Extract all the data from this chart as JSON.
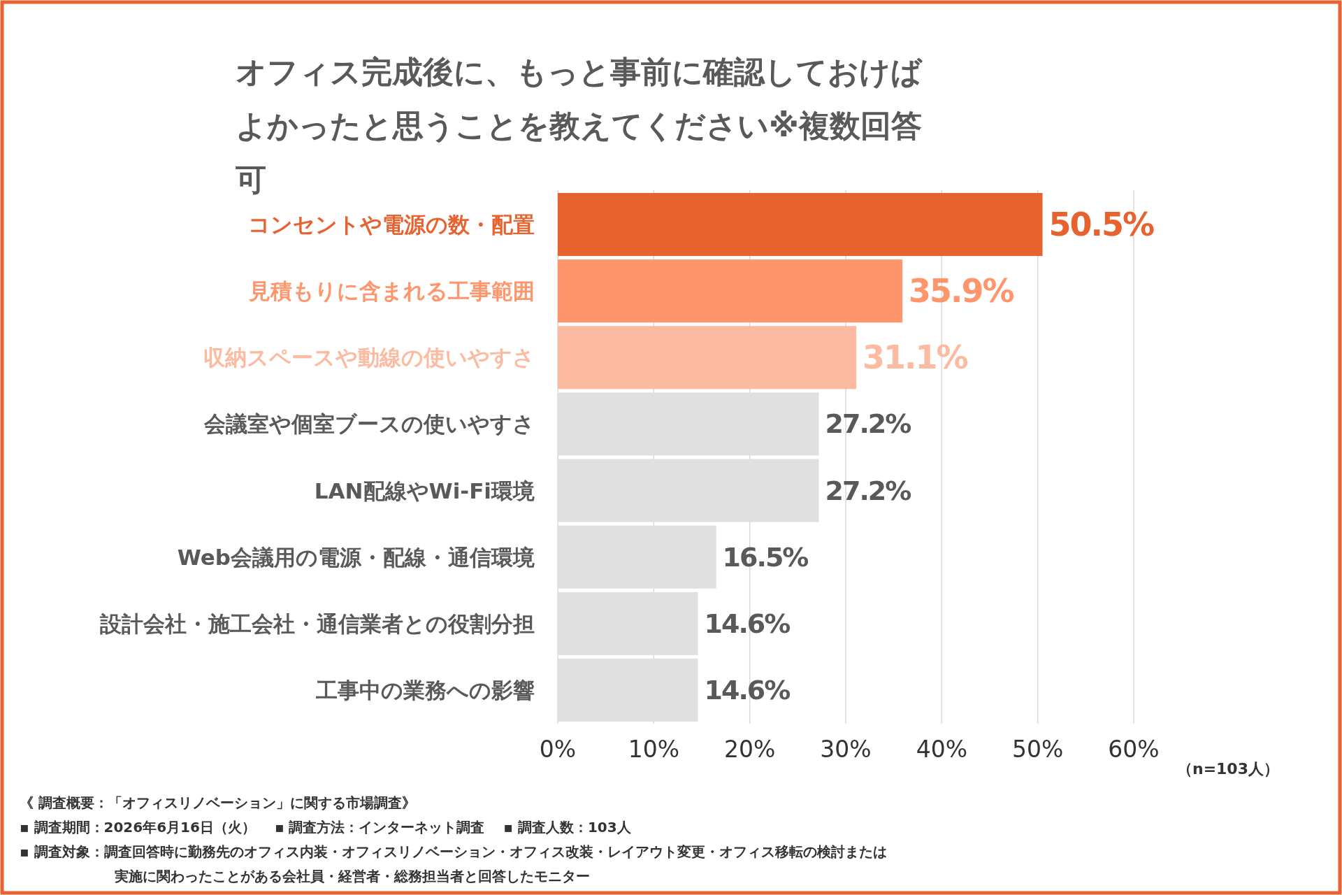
{
  "chart_data": {
    "type": "bar",
    "orientation": "horizontal",
    "title": "オフィス完成後に、もっと事前に確認しておけばよかったと思うことを教えてください※複数回答可",
    "categories": [
      "コンセントや電源の数・配置",
      "見積もりに含まれる工事範囲",
      "収納スペースや動線の使いやすさ",
      "会議室や個室ブースの使いやすさ",
      "LAN配線やWi-Fi環境",
      "Web会議用の電源・配線・通信環境",
      "設計会社・施工会社・通信業者との役割分担",
      "工事中の業務への影響"
    ],
    "values": [
      50.5,
      35.9,
      31.1,
      27.2,
      27.2,
      16.5,
      14.6,
      14.6
    ],
    "value_labels": [
      "50.5%",
      "35.9%",
      "31.1%",
      "27.2%",
      "27.2%",
      "16.5%",
      "14.6%",
      "14.6%"
    ],
    "colors": [
      "#e8622f",
      "#ff956b",
      "#fcbba0",
      "#e0e0e0",
      "#e0e0e0",
      "#e0e0e0",
      "#e0e0e0",
      "#e0e0e0"
    ],
    "xlim": [
      0,
      60
    ],
    "xticks": [
      {
        "value": 0,
        "label": "0%"
      },
      {
        "value": 10,
        "label": "10%"
      },
      {
        "value": 20,
        "label": "20%"
      },
      {
        "value": 30,
        "label": "30%"
      },
      {
        "value": 40,
        "label": "40%"
      },
      {
        "value": 50,
        "label": "50%"
      },
      {
        "value": 60,
        "label": "60%"
      }
    ],
    "grid": "x",
    "annotations": [
      "（n=103人）",
      "《 調査概要：「オフィスリノベーション」に関する市場調査》",
      "▪ 調査期間：2026年6月16日（火）　 ▪ 調査方法：インターネット調査　 ▪ 調査人数：103人",
      "▪ 調査対象：調査回答時に勤務先のオフィス内装・オフィスリノベーション・オフィス改装・レイアウト変更・オフィス移転の検討または",
      "実施に関わったことがある会社員・経営者・総務担当者と回答したモニター"
    ]
  }
}
